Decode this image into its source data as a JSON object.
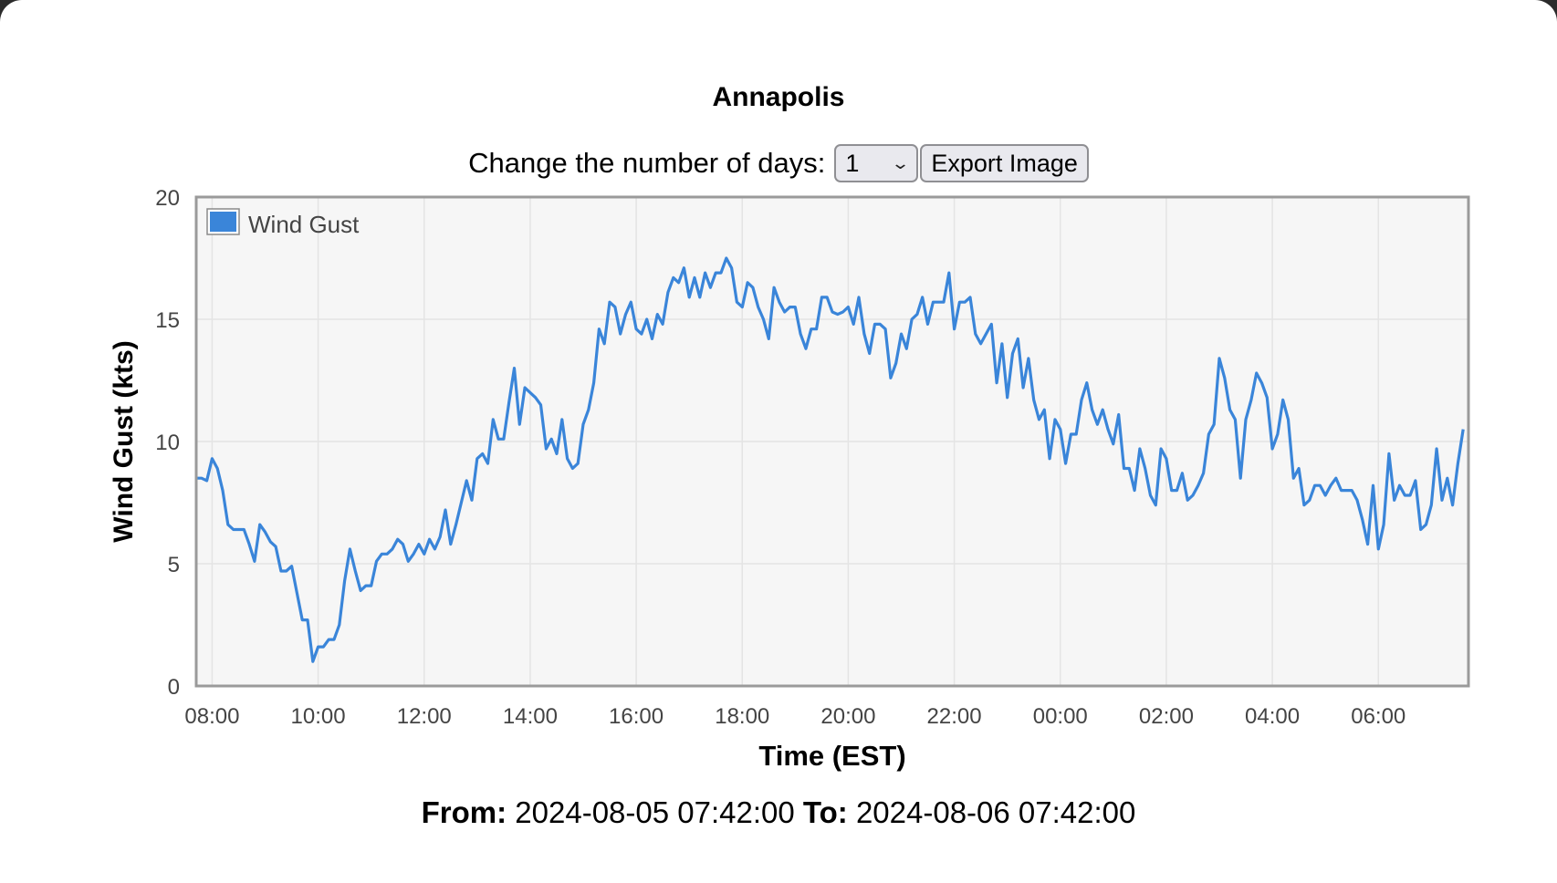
{
  "title": "Annapolis",
  "controls": {
    "days_label": "Change the number of days:",
    "days_value": "1",
    "export_label": "Export Image"
  },
  "footer": {
    "from_label": "From:",
    "from_value": "2024-08-05 07:42:00",
    "to_label": "To:",
    "to_value": "2024-08-06 07:42:00"
  },
  "colors": {
    "series": "#3a85d9",
    "plot_bg": "#f6f6f6",
    "plot_border": "#9a9a9a",
    "grid": "#e4e4e4"
  },
  "chart_data": {
    "type": "line",
    "title": "Annapolis",
    "xlabel": "Time (EST)",
    "ylabel": "Wind Gust (kts)",
    "ylim": [
      0,
      20
    ],
    "yticks": [
      0,
      5,
      10,
      15,
      20
    ],
    "x_start": "2024-08-05 07:42:00",
    "x_end": "2024-08-06 07:42:00",
    "xticks": [
      "08:00",
      "10:00",
      "12:00",
      "14:00",
      "16:00",
      "18:00",
      "20:00",
      "22:00",
      "00:00",
      "02:00",
      "04:00",
      "06:00"
    ],
    "grid": true,
    "legend": {
      "position": "top-left",
      "entries": [
        "Wind Gust"
      ]
    },
    "series": [
      {
        "name": "Wind Gust",
        "color": "#3a85d9",
        "x": [
          "2024-08-05 07:42",
          "2024-08-05 07:48",
          "2024-08-05 07:54",
          "2024-08-05 08:00",
          "2024-08-05 08:06",
          "2024-08-05 08:12",
          "2024-08-05 08:18",
          "2024-08-05 08:24",
          "2024-08-05 08:30",
          "2024-08-05 08:36",
          "2024-08-05 08:42",
          "2024-08-05 08:48",
          "2024-08-05 08:54",
          "2024-08-05 09:00",
          "2024-08-05 09:06",
          "2024-08-05 09:12",
          "2024-08-05 09:18",
          "2024-08-05 09:24",
          "2024-08-05 09:30",
          "2024-08-05 09:36",
          "2024-08-05 09:42",
          "2024-08-05 09:48",
          "2024-08-05 09:54",
          "2024-08-05 10:00",
          "2024-08-05 10:06",
          "2024-08-05 10:12",
          "2024-08-05 10:18",
          "2024-08-05 10:24",
          "2024-08-05 10:30",
          "2024-08-05 10:36",
          "2024-08-05 10:42",
          "2024-08-05 10:48",
          "2024-08-05 10:54",
          "2024-08-05 11:00",
          "2024-08-05 11:06",
          "2024-08-05 11:12",
          "2024-08-05 11:18",
          "2024-08-05 11:24",
          "2024-08-05 11:30",
          "2024-08-05 11:36",
          "2024-08-05 11:42",
          "2024-08-05 11:48",
          "2024-08-05 11:54",
          "2024-08-05 12:00",
          "2024-08-05 12:06",
          "2024-08-05 12:12",
          "2024-08-05 12:18",
          "2024-08-05 12:24",
          "2024-08-05 12:30",
          "2024-08-05 12:36",
          "2024-08-05 12:42",
          "2024-08-05 12:48",
          "2024-08-05 12:54",
          "2024-08-05 13:00",
          "2024-08-05 13:06",
          "2024-08-05 13:12",
          "2024-08-05 13:18",
          "2024-08-05 13:24",
          "2024-08-05 13:30",
          "2024-08-05 13:36",
          "2024-08-05 13:42",
          "2024-08-05 13:48",
          "2024-08-05 13:54",
          "2024-08-05 14:00",
          "2024-08-05 14:06",
          "2024-08-05 14:12",
          "2024-08-05 14:18",
          "2024-08-05 14:24",
          "2024-08-05 14:30",
          "2024-08-05 14:36",
          "2024-08-05 14:42",
          "2024-08-05 14:48",
          "2024-08-05 14:54",
          "2024-08-05 15:00",
          "2024-08-05 15:06",
          "2024-08-05 15:12",
          "2024-08-05 15:18",
          "2024-08-05 15:24",
          "2024-08-05 15:30",
          "2024-08-05 15:36",
          "2024-08-05 15:42",
          "2024-08-05 15:48",
          "2024-08-05 15:54",
          "2024-08-05 16:00",
          "2024-08-05 16:06",
          "2024-08-05 16:12",
          "2024-08-05 16:18",
          "2024-08-05 16:24",
          "2024-08-05 16:30",
          "2024-08-05 16:36",
          "2024-08-05 16:42",
          "2024-08-05 16:48",
          "2024-08-05 16:54",
          "2024-08-05 17:00",
          "2024-08-05 17:06",
          "2024-08-05 17:12",
          "2024-08-05 17:18",
          "2024-08-05 17:24",
          "2024-08-05 17:30",
          "2024-08-05 17:36",
          "2024-08-05 17:42",
          "2024-08-05 17:48",
          "2024-08-05 17:54",
          "2024-08-05 18:00",
          "2024-08-05 18:06",
          "2024-08-05 18:12",
          "2024-08-05 18:18",
          "2024-08-05 18:24",
          "2024-08-05 18:30",
          "2024-08-05 18:36",
          "2024-08-05 18:42",
          "2024-08-05 18:48",
          "2024-08-05 18:54",
          "2024-08-05 19:00",
          "2024-08-05 19:06",
          "2024-08-05 19:12",
          "2024-08-05 19:18",
          "2024-08-05 19:24",
          "2024-08-05 19:30",
          "2024-08-05 19:36",
          "2024-08-05 19:42",
          "2024-08-05 19:48",
          "2024-08-05 19:54",
          "2024-08-05 20:00",
          "2024-08-05 20:06",
          "2024-08-05 20:12",
          "2024-08-05 20:18",
          "2024-08-05 20:24",
          "2024-08-05 20:30",
          "2024-08-05 20:36",
          "2024-08-05 20:42",
          "2024-08-05 20:48",
          "2024-08-05 20:54",
          "2024-08-05 21:00",
          "2024-08-05 21:06",
          "2024-08-05 21:12",
          "2024-08-05 21:18",
          "2024-08-05 21:24",
          "2024-08-05 21:30",
          "2024-08-05 21:36",
          "2024-08-05 21:42",
          "2024-08-05 21:48",
          "2024-08-05 21:54",
          "2024-08-05 22:00",
          "2024-08-05 22:06",
          "2024-08-05 22:12",
          "2024-08-05 22:18",
          "2024-08-05 22:24",
          "2024-08-05 22:30",
          "2024-08-05 22:36",
          "2024-08-05 22:42",
          "2024-08-05 22:48",
          "2024-08-05 22:54",
          "2024-08-05 23:00",
          "2024-08-05 23:06",
          "2024-08-05 23:12",
          "2024-08-05 23:18",
          "2024-08-05 23:24",
          "2024-08-05 23:30",
          "2024-08-05 23:36",
          "2024-08-05 23:42",
          "2024-08-05 23:48",
          "2024-08-05 23:54",
          "2024-08-06 00:00",
          "2024-08-06 00:06",
          "2024-08-06 00:12",
          "2024-08-06 00:18",
          "2024-08-06 00:24",
          "2024-08-06 00:30",
          "2024-08-06 00:36",
          "2024-08-06 00:42",
          "2024-08-06 00:48",
          "2024-08-06 00:54",
          "2024-08-06 01:00",
          "2024-08-06 01:06",
          "2024-08-06 01:12",
          "2024-08-06 01:18",
          "2024-08-06 01:24",
          "2024-08-06 01:30",
          "2024-08-06 01:36",
          "2024-08-06 01:42",
          "2024-08-06 01:48",
          "2024-08-06 01:54",
          "2024-08-06 02:00",
          "2024-08-06 02:06",
          "2024-08-06 02:12",
          "2024-08-06 02:18",
          "2024-08-06 02:24",
          "2024-08-06 02:30",
          "2024-08-06 02:36",
          "2024-08-06 02:42",
          "2024-08-06 02:48",
          "2024-08-06 02:54",
          "2024-08-06 03:00",
          "2024-08-06 03:06",
          "2024-08-06 03:12",
          "2024-08-06 03:18",
          "2024-08-06 03:24",
          "2024-08-06 03:30",
          "2024-08-06 03:36",
          "2024-08-06 03:42",
          "2024-08-06 03:48",
          "2024-08-06 03:54",
          "2024-08-06 04:00",
          "2024-08-06 04:06",
          "2024-08-06 04:12",
          "2024-08-06 04:18",
          "2024-08-06 04:24",
          "2024-08-06 04:30",
          "2024-08-06 04:36",
          "2024-08-06 04:42",
          "2024-08-06 04:48",
          "2024-08-06 04:54",
          "2024-08-06 05:00",
          "2024-08-06 05:06",
          "2024-08-06 05:12",
          "2024-08-06 05:18",
          "2024-08-06 05:24",
          "2024-08-06 05:30",
          "2024-08-06 05:36",
          "2024-08-06 05:42",
          "2024-08-06 05:48",
          "2024-08-06 05:54",
          "2024-08-06 06:00",
          "2024-08-06 06:06",
          "2024-08-06 06:12",
          "2024-08-06 06:18",
          "2024-08-06 06:24",
          "2024-08-06 06:30",
          "2024-08-06 06:36",
          "2024-08-06 06:42",
          "2024-08-06 06:48",
          "2024-08-06 06:54",
          "2024-08-06 07:00",
          "2024-08-06 07:06",
          "2024-08-06 07:12",
          "2024-08-06 07:18",
          "2024-08-06 07:24",
          "2024-08-06 07:30",
          "2024-08-06 07:36"
        ],
        "y": [
          8.5,
          8.5,
          8.4,
          9.3,
          8.9,
          8.0,
          6.6,
          6.4,
          6.4,
          6.4,
          5.8,
          5.1,
          6.6,
          6.3,
          5.9,
          5.7,
          4.7,
          4.7,
          4.9,
          3.8,
          2.7,
          2.7,
          1.0,
          1.6,
          1.6,
          1.9,
          1.9,
          2.5,
          4.3,
          5.6,
          4.7,
          3.9,
          4.1,
          4.1,
          5.1,
          5.4,
          5.4,
          5.6,
          6.0,
          5.8,
          5.1,
          5.4,
          5.8,
          5.4,
          6.0,
          5.6,
          6.1,
          7.2,
          5.8,
          6.6,
          7.5,
          8.4,
          7.6,
          9.3,
          9.5,
          9.1,
          10.9,
          10.1,
          10.1,
          11.6,
          13.0,
          10.7,
          12.2,
          12.0,
          11.8,
          11.5,
          9.7,
          10.1,
          9.5,
          10.9,
          9.3,
          8.9,
          9.1,
          10.7,
          11.3,
          12.4,
          14.6,
          14.0,
          15.7,
          15.5,
          14.4,
          15.2,
          15.7,
          14.6,
          14.4,
          15.0,
          14.2,
          15.2,
          14.8,
          16.1,
          16.7,
          16.5,
          17.1,
          15.9,
          16.7,
          15.9,
          16.9,
          16.3,
          16.9,
          16.9,
          17.5,
          17.1,
          15.7,
          15.5,
          16.5,
          16.3,
          15.5,
          15.0,
          14.2,
          16.3,
          15.7,
          15.3,
          15.5,
          15.5,
          14.4,
          13.8,
          14.6,
          14.6,
          15.9,
          15.9,
          15.3,
          15.2,
          15.3,
          15.5,
          14.8,
          15.9,
          14.4,
          13.6,
          14.8,
          14.8,
          14.6,
          12.6,
          13.2,
          14.4,
          13.8,
          15.0,
          15.2,
          15.9,
          14.8,
          15.7,
          15.7,
          15.7,
          16.9,
          14.6,
          15.7,
          15.7,
          15.9,
          14.4,
          14.0,
          14.4,
          14.8,
          12.4,
          14.0,
          11.8,
          13.6,
          14.2,
          12.2,
          13.4,
          11.7,
          10.9,
          11.3,
          9.3,
          10.9,
          10.5,
          9.1,
          10.3,
          10.3,
          11.7,
          12.4,
          11.3,
          10.7,
          11.3,
          10.5,
          9.9,
          11.1,
          8.9,
          8.9,
          8.0,
          9.7,
          8.9,
          7.8,
          7.4,
          9.7,
          9.3,
          8.0,
          8.0,
          8.7,
          7.6,
          7.8,
          8.2,
          8.7,
          10.3,
          10.7,
          13.4,
          12.6,
          11.3,
          10.9,
          8.5,
          10.9,
          11.7,
          12.8,
          12.4,
          11.8,
          9.7,
          10.3,
          11.7,
          10.9,
          8.5,
          8.9,
          7.4,
          7.6,
          8.2,
          8.2,
          7.8,
          8.2,
          8.5,
          8.0,
          8.0,
          8.0,
          7.6,
          6.8,
          5.8,
          8.2,
          5.6,
          6.6,
          9.5,
          7.6,
          8.2,
          7.8,
          7.8,
          8.4,
          6.4,
          6.6,
          7.4,
          9.7,
          7.6,
          8.5,
          7.4,
          9.1,
          10.5
        ]
      }
    ]
  }
}
